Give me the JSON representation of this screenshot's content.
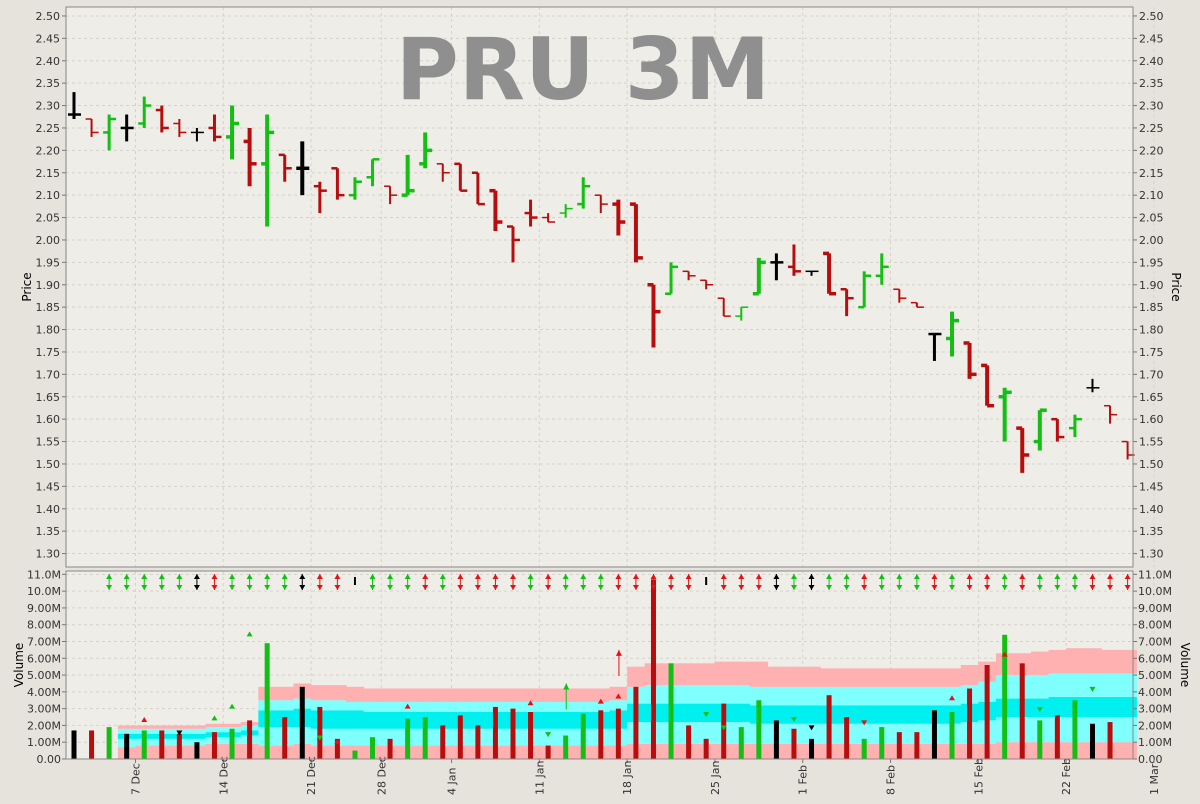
{
  "title": "PRU 3M",
  "colors": {
    "background": "#e6e3dc",
    "plot_bg": "#efede8",
    "grid": "#d6d2cb",
    "up": "#13bf13",
    "down": "#b80d0d",
    "neutral": "#000000",
    "title": "#8f8f8f",
    "band_outer": "#ffb0b0",
    "band_mid": "#80ffff",
    "band_inner": "#00f0f0",
    "arrow_up": "#e81010",
    "arrow_down": "#10c010"
  },
  "chart_data": [
    {
      "type": "ohlc",
      "title": "PRU 3M",
      "ylabel": "Price",
      "ylim": [
        1.27,
        2.52
      ],
      "yticks": [
        "1.30",
        "1.35",
        "1.40",
        "1.45",
        "1.50",
        "1.55",
        "1.60",
        "1.65",
        "1.70",
        "1.75",
        "1.80",
        "1.85",
        "1.90",
        "1.95",
        "2.00",
        "2.05",
        "2.10",
        "2.15",
        "2.20",
        "2.25",
        "2.30",
        "2.35",
        "2.40",
        "2.45",
        "2.50"
      ],
      "grid": true,
      "bars": [
        {
          "o": 2.28,
          "h": 2.33,
          "l": 2.27,
          "c": 2.28
        },
        {
          "o": 2.27,
          "h": 2.27,
          "l": 2.23,
          "c": 2.24
        },
        {
          "o": 2.24,
          "h": 2.28,
          "l": 2.2,
          "c": 2.27
        },
        {
          "o": 2.25,
          "h": 2.28,
          "l": 2.22,
          "c": 2.25
        },
        {
          "o": 2.26,
          "h": 2.32,
          "l": 2.25,
          "c": 2.3
        },
        {
          "o": 2.29,
          "h": 2.3,
          "l": 2.24,
          "c": 2.25
        },
        {
          "o": 2.26,
          "h": 2.27,
          "l": 2.23,
          "c": 2.24
        },
        {
          "o": 2.24,
          "h": 2.25,
          "l": 2.22,
          "c": 2.24
        },
        {
          "o": 2.25,
          "h": 2.28,
          "l": 2.22,
          "c": 2.23
        },
        {
          "o": 2.23,
          "h": 2.3,
          "l": 2.18,
          "c": 2.26
        },
        {
          "o": 2.22,
          "h": 2.25,
          "l": 2.12,
          "c": 2.17
        },
        {
          "o": 2.17,
          "h": 2.28,
          "l": 2.03,
          "c": 2.24
        },
        {
          "o": 2.19,
          "h": 2.19,
          "l": 2.13,
          "c": 2.16
        },
        {
          "o": 2.16,
          "h": 2.22,
          "l": 2.1,
          "c": 2.16
        },
        {
          "o": 2.12,
          "h": 2.13,
          "l": 2.06,
          "c": 2.11
        },
        {
          "o": 2.16,
          "h": 2.16,
          "l": 2.09,
          "c": 2.1
        },
        {
          "o": 2.1,
          "h": 2.14,
          "l": 2.09,
          "c": 2.13
        },
        {
          "o": 2.14,
          "h": 2.18,
          "l": 2.12,
          "c": 2.18
        },
        {
          "o": 2.12,
          "h": 2.12,
          "l": 2.08,
          "c": 2.1
        },
        {
          "o": 2.1,
          "h": 2.19,
          "l": 2.1,
          "c": 2.11
        },
        {
          "o": 2.17,
          "h": 2.24,
          "l": 2.16,
          "c": 2.2
        },
        {
          "o": 2.17,
          "h": 2.17,
          "l": 2.13,
          "c": 2.15
        },
        {
          "o": 2.17,
          "h": 2.17,
          "l": 2.11,
          "c": 2.11
        },
        {
          "o": 2.15,
          "h": 2.15,
          "l": 2.08,
          "c": 2.08
        },
        {
          "o": 2.11,
          "h": 2.11,
          "l": 2.02,
          "c": 2.04
        },
        {
          "o": 2.03,
          "h": 2.03,
          "l": 1.95,
          "c": 2.0
        },
        {
          "o": 2.06,
          "h": 2.09,
          "l": 2.03,
          "c": 2.05
        },
        {
          "o": 2.05,
          "h": 2.06,
          "l": 2.04,
          "c": 2.04
        },
        {
          "o": 2.06,
          "h": 2.08,
          "l": 2.05,
          "c": 2.07
        },
        {
          "o": 2.08,
          "h": 2.14,
          "l": 2.07,
          "c": 2.12
        },
        {
          "o": 2.1,
          "h": 2.1,
          "l": 2.06,
          "c": 2.08
        },
        {
          "o": 2.08,
          "h": 2.09,
          "l": 2.01,
          "c": 2.04
        },
        {
          "o": 2.08,
          "h": 2.08,
          "l": 1.95,
          "c": 1.96
        },
        {
          "o": 1.9,
          "h": 1.9,
          "l": 1.76,
          "c": 1.84
        },
        {
          "o": 1.88,
          "h": 1.95,
          "l": 1.88,
          "c": 1.94
        },
        {
          "o": 1.93,
          "h": 1.93,
          "l": 1.91,
          "c": 1.92
        },
        {
          "o": 1.91,
          "h": 1.91,
          "l": 1.89,
          "c": 1.9
        },
        {
          "o": 1.87,
          "h": 1.87,
          "l": 1.83,
          "c": 1.83
        },
        {
          "o": 1.83,
          "h": 1.85,
          "l": 1.82,
          "c": 1.85
        },
        {
          "o": 1.88,
          "h": 1.96,
          "l": 1.88,
          "c": 1.95
        },
        {
          "o": 1.95,
          "h": 1.97,
          "l": 1.91,
          "c": 1.95
        },
        {
          "o": 1.94,
          "h": 1.99,
          "l": 1.92,
          "c": 1.93
        },
        {
          "o": 1.93,
          "h": 1.93,
          "l": 1.92,
          "c": 1.93
        },
        {
          "o": 1.97,
          "h": 1.97,
          "l": 1.88,
          "c": 1.88
        },
        {
          "o": 1.89,
          "h": 1.89,
          "l": 1.83,
          "c": 1.87
        },
        {
          "o": 1.85,
          "h": 1.93,
          "l": 1.85,
          "c": 1.92
        },
        {
          "o": 1.92,
          "h": 1.97,
          "l": 1.9,
          "c": 1.94
        },
        {
          "o": 1.89,
          "h": 1.89,
          "l": 1.86,
          "c": 1.87
        },
        {
          "o": 1.86,
          "h": 1.86,
          "l": 1.85,
          "c": 1.85
        },
        {
          "o": 1.79,
          "h": 1.79,
          "l": 1.73,
          "c": 1.79
        },
        {
          "o": 1.78,
          "h": 1.84,
          "l": 1.74,
          "c": 1.82
        },
        {
          "o": 1.77,
          "h": 1.77,
          "l": 1.69,
          "c": 1.7
        },
        {
          "o": 1.72,
          "h": 1.72,
          "l": 1.63,
          "c": 1.63
        },
        {
          "o": 1.65,
          "h": 1.67,
          "l": 1.55,
          "c": 1.66
        },
        {
          "o": 1.58,
          "h": 1.58,
          "l": 1.48,
          "c": 1.52
        },
        {
          "o": 1.55,
          "h": 1.62,
          "l": 1.53,
          "c": 1.62
        },
        {
          "o": 1.6,
          "h": 1.6,
          "l": 1.55,
          "c": 1.56
        },
        {
          "o": 1.58,
          "h": 1.61,
          "l": 1.56,
          "c": 1.6
        },
        {
          "o": 1.67,
          "h": 1.69,
          "l": 1.66,
          "c": 1.67
        },
        {
          "o": 1.63,
          "h": 1.63,
          "l": 1.59,
          "c": 1.61
        },
        {
          "o": 1.55,
          "h": 1.55,
          "l": 1.51,
          "c": 1.52
        }
      ]
    },
    {
      "type": "bar",
      "title": "",
      "ylabel": "Volume",
      "ylim": [
        0,
        11.2
      ],
      "yticks": [
        "0.00",
        "1.00M",
        "2.00M",
        "3.00M",
        "4.00M",
        "5.00M",
        "6.00M",
        "7.00M",
        "8.00M",
        "9.00M",
        "10.0M",
        "11.0M"
      ],
      "grid": true,
      "x_tick_labels": [
        {
          "i": 3.5,
          "label": "7 Dec"
        },
        {
          "i": 8.5,
          "label": "14 Dec"
        },
        {
          "i": 13.5,
          "label": "21 Dec"
        },
        {
          "i": 17.5,
          "label": "28 Dec"
        },
        {
          "i": 21.5,
          "label": "4 Jan"
        },
        {
          "i": 26.5,
          "label": "11 Jan"
        },
        {
          "i": 31.5,
          "label": "18 Jan"
        },
        {
          "i": 36.5,
          "label": "25 Jan"
        },
        {
          "i": 41.5,
          "label": "1 Feb"
        },
        {
          "i": 46.5,
          "label": "8 Feb"
        },
        {
          "i": 51.5,
          "label": "15 Feb"
        },
        {
          "i": 56.5,
          "label": "22 Feb"
        },
        {
          "i": 61.5,
          "label": "1 Mar"
        }
      ],
      "values": [
        1.7,
        1.7,
        1.9,
        1.5,
        1.7,
        1.7,
        1.5,
        1.0,
        1.6,
        1.8,
        2.3,
        6.9,
        2.5,
        4.3,
        3.1,
        1.2,
        0.5,
        1.3,
        1.2,
        2.4,
        2.5,
        2.0,
        2.6,
        2.0,
        3.1,
        3.0,
        2.8,
        0.8,
        1.4,
        2.7,
        2.9,
        3.0,
        4.3,
        10.7,
        5.7,
        2.0,
        1.2,
        3.3,
        1.9,
        3.5,
        2.3,
        1.8,
        1.2,
        3.8,
        2.5,
        1.2,
        1.9,
        1.6,
        1.6,
        2.9,
        2.8,
        4.2,
        5.6,
        7.4,
        5.7,
        2.3,
        2.6,
        3.5,
        2.1,
        2.2,
        0
      ],
      "bands": [
        [
          0,
          0,
          0,
          0.7,
          0.8,
          0.8,
          0.8,
          0.8,
          0.9,
          0.9,
          0.9,
          0.8,
          0.8,
          0.9,
          0.8,
          0.8,
          0.8,
          0.8,
          0.8,
          0.8,
          0.8,
          0.8,
          0.8,
          0.8,
          0.8,
          0.8,
          0.8,
          0.8,
          0.8,
          0.8,
          0.8,
          0.8,
          0.9,
          0.9,
          0.9,
          0.9,
          0.9,
          0.9,
          0.9,
          0.9,
          0.9,
          0.9,
          0.9,
          0.9,
          0.9,
          0.9,
          0.9,
          0.9,
          0.9,
          0.9,
          0.9,
          0.9,
          0.9,
          1.0,
          1.0,
          1.0,
          1.0,
          1.0,
          1.0,
          1.0,
          1.0
        ],
        [
          0,
          0,
          0,
          1.2,
          1.2,
          1.2,
          1.2,
          1.2,
          1.3,
          1.3,
          1.4,
          1.9,
          1.9,
          1.9,
          1.8,
          1.8,
          1.8,
          1.8,
          1.8,
          1.8,
          1.8,
          1.8,
          1.8,
          1.8,
          1.8,
          1.8,
          1.8,
          1.8,
          1.8,
          1.8,
          1.8,
          1.8,
          2.2,
          2.2,
          2.2,
          2.2,
          2.2,
          2.2,
          2.2,
          2.1,
          2.1,
          2.1,
          2.1,
          2.1,
          2.1,
          2.1,
          2.1,
          2.1,
          2.1,
          2.1,
          2.1,
          2.2,
          2.3,
          2.5,
          2.5,
          2.5,
          2.5,
          2.5,
          2.5,
          2.5,
          2.5
        ],
        [
          0,
          0,
          0,
          1.5,
          1.5,
          1.5,
          1.5,
          1.5,
          1.6,
          1.6,
          1.7,
          2.9,
          2.9,
          3.0,
          2.9,
          2.9,
          2.9,
          2.8,
          2.8,
          2.8,
          2.8,
          2.8,
          2.8,
          2.8,
          2.8,
          2.8,
          2.8,
          2.8,
          2.8,
          2.8,
          2.8,
          2.9,
          3.3,
          3.3,
          3.3,
          3.3,
          3.3,
          3.3,
          3.3,
          3.2,
          3.2,
          3.2,
          3.2,
          3.2,
          3.2,
          3.2,
          3.2,
          3.2,
          3.2,
          3.2,
          3.2,
          3.3,
          3.4,
          3.6,
          3.6,
          3.6,
          3.7,
          3.7,
          3.7,
          3.7,
          3.7
        ],
        [
          0,
          0,
          0,
          1.8,
          1.8,
          1.8,
          1.8,
          1.8,
          1.9,
          1.9,
          2.0,
          3.5,
          3.5,
          3.6,
          3.5,
          3.5,
          3.4,
          3.4,
          3.4,
          3.4,
          3.4,
          3.4,
          3.4,
          3.4,
          3.4,
          3.4,
          3.4,
          3.4,
          3.4,
          3.4,
          3.4,
          3.5,
          4.3,
          4.4,
          4.4,
          4.4,
          4.4,
          4.4,
          4.4,
          4.3,
          4.3,
          4.3,
          4.3,
          4.3,
          4.3,
          4.3,
          4.3,
          4.3,
          4.3,
          4.3,
          4.3,
          4.4,
          4.6,
          5.0,
          5.0,
          5.0,
          5.1,
          5.1,
          5.1,
          5.1,
          5.1
        ],
        [
          0,
          0,
          0,
          2.0,
          2.0,
          2.0,
          2.0,
          2.0,
          2.1,
          2.1,
          2.2,
          4.3,
          4.3,
          4.5,
          4.4,
          4.4,
          4.3,
          4.2,
          4.2,
          4.2,
          4.2,
          4.2,
          4.2,
          4.2,
          4.2,
          4.2,
          4.2,
          4.2,
          4.2,
          4.2,
          4.2,
          4.3,
          5.5,
          5.7,
          5.7,
          5.7,
          5.7,
          5.8,
          5.8,
          5.8,
          5.5,
          5.5,
          5.5,
          5.4,
          5.4,
          5.4,
          5.4,
          5.4,
          5.4,
          5.4,
          5.4,
          5.6,
          5.8,
          6.3,
          6.3,
          6.4,
          6.5,
          6.6,
          6.6,
          6.5,
          6.5
        ]
      ],
      "signals": [
        {
          "i": 2,
          "t": "down"
        },
        {
          "i": 3,
          "t": "down"
        },
        {
          "i": 4,
          "t": "down"
        },
        {
          "i": 5,
          "t": "down"
        },
        {
          "i": 6,
          "t": "down"
        },
        {
          "i": 7,
          "t": "neutral"
        },
        {
          "i": 8,
          "t": "up"
        },
        {
          "i": 9,
          "t": "down"
        },
        {
          "i": 10,
          "t": "down"
        },
        {
          "i": 11,
          "t": "down"
        },
        {
          "i": 12,
          "t": "down"
        },
        {
          "i": 13,
          "t": "neutral"
        },
        {
          "i": 14,
          "t": "up"
        },
        {
          "i": 15,
          "t": "up"
        },
        {
          "i": 16,
          "t": "dash"
        },
        {
          "i": 17,
          "t": "down"
        },
        {
          "i": 18,
          "t": "down"
        },
        {
          "i": 19,
          "t": "down"
        },
        {
          "i": 20,
          "t": "up"
        },
        {
          "i": 21,
          "t": "down"
        },
        {
          "i": 22,
          "t": "up"
        },
        {
          "i": 23,
          "t": "up"
        },
        {
          "i": 24,
          "t": "up"
        },
        {
          "i": 25,
          "t": "up"
        },
        {
          "i": 26,
          "t": "down"
        },
        {
          "i": 27,
          "t": "up"
        },
        {
          "i": 28,
          "t": "down"
        },
        {
          "i": 29,
          "t": "down"
        },
        {
          "i": 30,
          "t": "down"
        },
        {
          "i": 31,
          "t": "up"
        },
        {
          "i": 32,
          "t": "up"
        },
        {
          "i": 33,
          "t": "up"
        },
        {
          "i": 34,
          "t": "up"
        },
        {
          "i": 35,
          "t": "up"
        },
        {
          "i": 36,
          "t": "dash"
        },
        {
          "i": 37,
          "t": "up"
        },
        {
          "i": 38,
          "t": "up"
        },
        {
          "i": 39,
          "t": "up"
        },
        {
          "i": 40,
          "t": "neutral"
        },
        {
          "i": 41,
          "t": "down"
        },
        {
          "i": 42,
          "t": "neutral"
        },
        {
          "i": 43,
          "t": "down"
        },
        {
          "i": 44,
          "t": "down"
        },
        {
          "i": 45,
          "t": "up"
        },
        {
          "i": 46,
          "t": "down"
        },
        {
          "i": 47,
          "t": "down"
        },
        {
          "i": 48,
          "t": "down"
        },
        {
          "i": 49,
          "t": "up"
        },
        {
          "i": 50,
          "t": "down"
        },
        {
          "i": 51,
          "t": "up"
        },
        {
          "i": 52,
          "t": "up"
        },
        {
          "i": 53,
          "t": "down"
        },
        {
          "i": 54,
          "t": "up"
        },
        {
          "i": 55,
          "t": "down"
        },
        {
          "i": 56,
          "t": "down"
        },
        {
          "i": 57,
          "t": "down"
        },
        {
          "i": 58,
          "t": "up"
        },
        {
          "i": 59,
          "t": "up"
        },
        {
          "i": 60,
          "t": "up"
        }
      ],
      "markers": [
        {
          "i": 4,
          "t": "up",
          "v": 2.5
        },
        {
          "i": 6,
          "t": "down",
          "v": 1.7
        },
        {
          "i": 8,
          "t": "up",
          "v": 2.6
        },
        {
          "i": 9,
          "t": "up",
          "v": 3.3
        },
        {
          "i": 10,
          "t": "up",
          "v": 7.6
        },
        {
          "i": 14,
          "t": "down",
          "v": 1.4
        },
        {
          "i": 15,
          "t": "up",
          "v": 1.2
        },
        {
          "i": 19,
          "t": "down",
          "v": 3.3
        },
        {
          "i": 26,
          "t": "down",
          "v": 3.5
        },
        {
          "i": 27,
          "t": "down",
          "v": 1.6
        },
        {
          "i": 29,
          "t": "arrow-up",
          "v": 4.5
        },
        {
          "i": 30,
          "t": "up",
          "v": 3.6
        },
        {
          "i": 31,
          "t": "up",
          "v": 3.9
        },
        {
          "i": 32,
          "t": "arrow-up",
          "v": 6.5
        },
        {
          "i": 36,
          "t": "down",
          "v": 2.8
        },
        {
          "i": 37,
          "t": "down",
          "v": 2.0
        },
        {
          "i": 41,
          "t": "down",
          "v": 2.5
        },
        {
          "i": 42,
          "t": "neutral",
          "v": 2.0
        },
        {
          "i": 45,
          "t": "down",
          "v": 2.3
        },
        {
          "i": 50,
          "t": "up",
          "v": 3.8
        },
        {
          "i": 53,
          "t": "up",
          "v": 6.4
        },
        {
          "i": 55,
          "t": "down",
          "v": 3.1
        },
        {
          "i": 58,
          "t": "down",
          "v": 4.3
        }
      ]
    }
  ]
}
